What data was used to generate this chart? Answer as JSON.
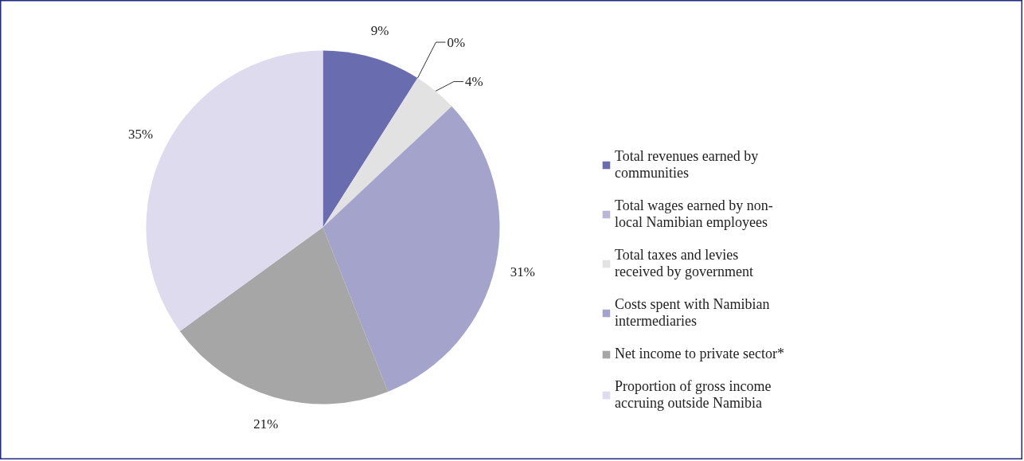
{
  "chart_data": {
    "type": "pie",
    "categories": [
      "Total revenues earned by communities",
      "Total wages earned by non-local Namibian employees",
      "Total taxes and levies received by government",
      "Costs spent with Namibian intermediaries",
      "Net income to private sector*",
      "Proportion of gross income accruing outside Namibia"
    ],
    "values": [
      9,
      0,
      4,
      31,
      21,
      35
    ],
    "colors": [
      "#6a6cb0",
      "#b9b6da",
      "#e2e2e2",
      "#a4a3cc",
      "#a6a6a6",
      "#dedbee"
    ],
    "value_labels": [
      "9%",
      "0%",
      "4%",
      "31%",
      "21%",
      "35%"
    ],
    "legend": "right"
  }
}
